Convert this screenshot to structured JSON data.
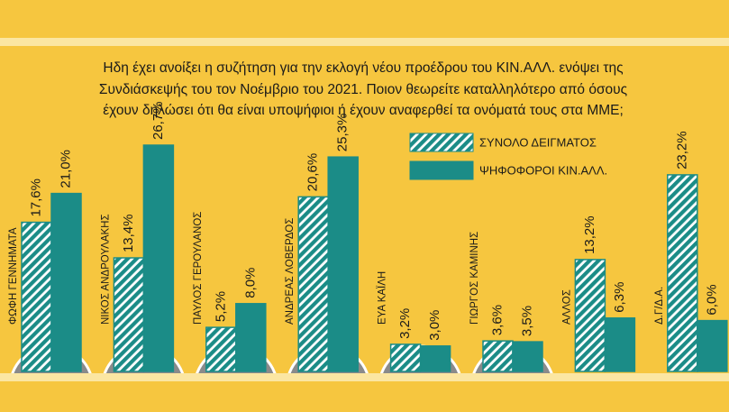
{
  "chart_data": {
    "type": "bar",
    "title": [
      "Ηδη έχει ανοίξει η συζήτηση για την εκλογή νέου προέδρου του ΚΙΝ.ΑΛΛ. ενόψει της",
      "Συνδιάσκεψής του τον Νοέμβριο του 2021. Ποιον θεωρείτε καταλληλότερο από όσους",
      "έχουν δηλώσει ότι θα είναι υποψήφιοι ή έχουν αναφερθεί τα ονόματά τους στα ΜΜΕ;"
    ],
    "categories": [
      "ΦΩΦΗ ΓΕΝΝΗΜΑΤΑ",
      "ΝΙΚΟΣ ΑΝΔΡΟΥΛΑΚΗΣ",
      "ΠΑΥΛΟΣ ΓΕΡΟΥΛΑΝΟΣ",
      "ΑΝΔΡΕΑΣ ΛΟΒΕΡΔΟΣ",
      "ΕΥΑ ΚΑΪΛΗ",
      "ΓΙΩΡΓΟΣ ΚΑΜΙΝΗΣ",
      "ΑΛΛΟΣ",
      "Δ.Γ/Δ.Α."
    ],
    "series": [
      {
        "name": "ΣΥΝΟΛΟ ΔΕΙΓΜΑΤΟΣ",
        "color": "#1b8c87",
        "pattern": "hatch",
        "values": [
          17.6,
          13.4,
          5.2,
          20.6,
          3.2,
          3.6,
          13.2,
          23.2
        ],
        "value_labels": [
          "17,6%",
          "13,4%",
          "5,2%",
          "20,6%",
          "3,2%",
          "3,6%",
          "13,2%",
          "23,2%"
        ]
      },
      {
        "name": "ΨΗΦΟΦΟΡΟΙ ΚΙΝ.ΑΛΛ.",
        "color": "#1b8c87",
        "pattern": "solid",
        "values": [
          21.0,
          26.7,
          8.0,
          25.3,
          3.0,
          3.5,
          6.3,
          6.0
        ],
        "value_labels": [
          "21,0%",
          "26,7%",
          "8,0%",
          "25,3%",
          "3,0%",
          "3,5%",
          "6,3%",
          "6,0%"
        ]
      }
    ]
  }
}
